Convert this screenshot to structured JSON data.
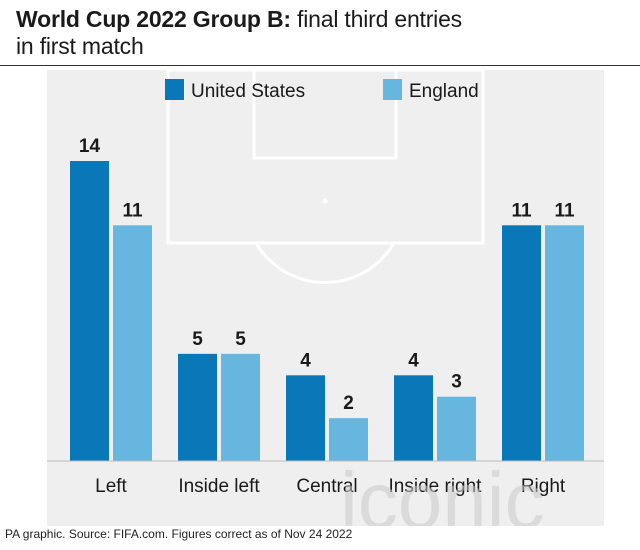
{
  "title": {
    "bold": "World Cup 2022 Group B:",
    "rest_line1": "final third entries",
    "line2": "in first match"
  },
  "colors": {
    "united_states": "#0a78b8",
    "england": "#67b6e0",
    "pitch": "#efefef",
    "pitch_lines": "#ffffff",
    "watermark": "#c8c8c8"
  },
  "chart_data": {
    "type": "bar",
    "title": "World Cup 2022 Group B: final third entries in first match",
    "xlabel": "",
    "ylabel": "",
    "ylim": [
      0,
      14
    ],
    "grid": false,
    "legend_position": "top",
    "categories": [
      "Left",
      "Inside left",
      "Central",
      "Inside right",
      "Right"
    ],
    "series": [
      {
        "name": "United States",
        "values": [
          14,
          5,
          4,
          4,
          11
        ]
      },
      {
        "name": "England",
        "values": [
          11,
          5,
          2,
          3,
          11
        ]
      }
    ]
  },
  "watermark": "iconic",
  "footer": "PA graphic. Source: FIFA.com. Figures correct as of Nov 24 2022"
}
